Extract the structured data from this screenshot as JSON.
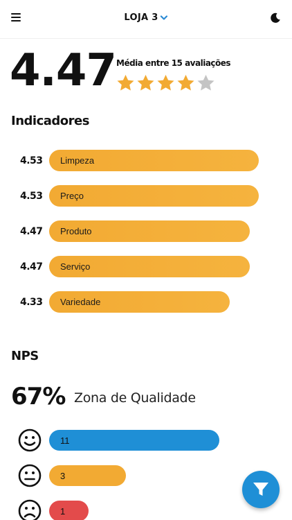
{
  "header": {
    "store_label": "LOJA 3",
    "menu_icon": "hamburger-menu-icon",
    "dropdown_icon": "chevron-down-icon",
    "theme_icon": "moon-icon",
    "dropdown_color": "#2a8ad4"
  },
  "rating": {
    "average": "4.47",
    "caption": "Média entre 15 avaliações",
    "stars_filled": 4,
    "stars_total": 5,
    "star_color": "#f2aa33",
    "star_empty_color": "#c4c4c4"
  },
  "indicators": {
    "title": "Indicadores",
    "items": [
      {
        "value": "4.53",
        "label": "Limpeza",
        "score": 4.53
      },
      {
        "value": "4.53",
        "label": "Preço",
        "score": 4.53
      },
      {
        "value": "4.47",
        "label": "Produto",
        "score": 4.47
      },
      {
        "value": "4.47",
        "label": "Serviço",
        "score": 4.47
      },
      {
        "value": "4.33",
        "label": "Variedade",
        "score": 4.33
      }
    ]
  },
  "nps": {
    "title": "NPS",
    "value": "67%",
    "zone": "Zona de Qualidade",
    "rows": [
      {
        "face": "happy-face-icon",
        "count": "11",
        "n": 11,
        "color": "#1f8fd6"
      },
      {
        "face": "neutral-face-icon",
        "count": "3",
        "n": 3,
        "color": "#f2aa33"
      },
      {
        "face": "sad-face-icon",
        "count": "1",
        "n": 1,
        "color": "#e34b4b"
      }
    ]
  },
  "fab": {
    "icon": "filter-icon"
  }
}
